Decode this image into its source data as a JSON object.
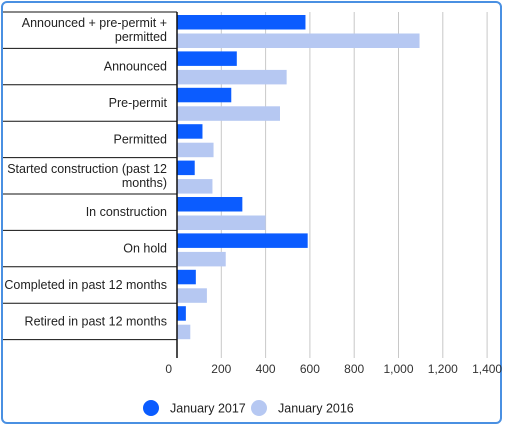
{
  "chart_data": {
    "type": "bar",
    "orientation": "horizontal",
    "title": "",
    "xlabel": "",
    "ylabel": "",
    "xlim": [
      0,
      1400
    ],
    "grid": true,
    "legend_position": "bottom",
    "categories": [
      "Announced + pre-permit + permitted",
      "Announced",
      "Pre-permit",
      "Permitted",
      "Started construction (past 12 months)",
      "In construction",
      "On hold",
      "Completed in past 12 months",
      "Retired in past 12 months"
    ],
    "category_lines": [
      [
        "Announced + pre-permit +",
        "permitted"
      ],
      [
        "Announced"
      ],
      [
        "Pre-permit"
      ],
      [
        "Permitted"
      ],
      [
        "Started construction (past 12",
        "months)"
      ],
      [
        "In construction"
      ],
      [
        "On hold"
      ],
      [
        "Completed in past 12 months"
      ],
      [
        "Retired in past 12 months"
      ]
    ],
    "ticks": [
      0,
      200,
      400,
      600,
      800,
      1000,
      1200,
      1400
    ],
    "tick_labels": [
      "0",
      "200",
      "400",
      "600",
      "800",
      "1,000",
      "1,200",
      "1,400"
    ],
    "series": [
      {
        "name": "January 2017",
        "color": "#0b5cff",
        "values": [
          580,
          270,
          245,
          115,
          80,
          295,
          590,
          85,
          40
        ]
      },
      {
        "name": "January 2016",
        "color": "#b6c8f2",
        "values": [
          1095,
          495,
          465,
          165,
          160,
          400,
          220,
          135,
          60
        ]
      }
    ]
  }
}
